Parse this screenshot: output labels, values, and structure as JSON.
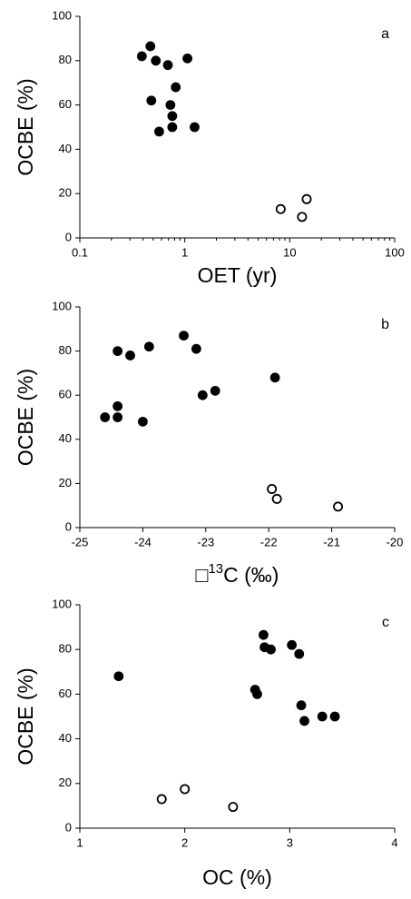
{
  "chart_data": [
    {
      "type": "scatter",
      "annotation": "a",
      "x_label": "OET (yr)",
      "y_label": "OCBE (%)",
      "xscale": "log",
      "xlim": [
        0.1,
        100
      ],
      "xticks": [
        0.1,
        1,
        10,
        100
      ],
      "ylim": [
        0,
        100
      ],
      "yticks": [
        0,
        20,
        40,
        60,
        80,
        100
      ],
      "series": [
        {
          "color": "#000000",
          "filled": true,
          "x": [
            0.39,
            0.47,
            0.53,
            0.69,
            1.06,
            0.82,
            0.48,
            0.73,
            0.76,
            0.76,
            1.24,
            0.57
          ],
          "values": [
            82,
            86.5,
            80,
            78,
            81,
            68,
            62,
            60,
            55,
            50,
            50,
            48
          ]
        },
        {
          "color": "#000000",
          "filled": false,
          "x": [
            8.2,
            14.5,
            13.1
          ],
          "values": [
            13,
            17.5,
            9.5
          ]
        }
      ]
    },
    {
      "type": "scatter",
      "annotation": "b",
      "x_label": [
        "□",
        "13",
        "C (‰)"
      ],
      "y_label": "OCBE (%)",
      "xlim": [
        -25,
        -20
      ],
      "xticks": [
        -25,
        -24,
        -23,
        -22,
        -21,
        -20
      ],
      "ylim": [
        0,
        100
      ],
      "yticks": [
        0,
        20,
        40,
        60,
        80,
        100
      ],
      "series": [
        {
          "color": "#000000",
          "filled": true,
          "x": [
            -24.4,
            -24.2,
            -23.9,
            -23.35,
            -23.15,
            -22.85,
            -23.05,
            -21.9,
            -24.6,
            -24.4,
            -24.4,
            -24.0
          ],
          "values": [
            80,
            78,
            82,
            87,
            81,
            62,
            60,
            68,
            50,
            55,
            50,
            48
          ]
        },
        {
          "color": "#000000",
          "filled": false,
          "x": [
            -21.95,
            -21.87,
            -20.9
          ],
          "values": [
            17.5,
            13,
            9.5
          ]
        }
      ]
    },
    {
      "type": "scatter",
      "annotation": "c",
      "x_label": "OC (%)",
      "y_label": "OCBE (%)",
      "xlim": [
        1,
        4
      ],
      "xticks": [
        1,
        2,
        3,
        4
      ],
      "ylim": [
        0,
        100
      ],
      "yticks": [
        0,
        20,
        40,
        60,
        80,
        100
      ],
      "series": [
        {
          "color": "#000000",
          "filled": true,
          "x": [
            1.37,
            2.75,
            2.76,
            2.82,
            2.67,
            2.69,
            3.02,
            3.09,
            3.11,
            3.14,
            3.31,
            3.43
          ],
          "values": [
            68,
            86.5,
            81,
            80,
            62,
            60,
            82,
            78,
            55,
            48,
            50,
            50
          ]
        },
        {
          "color": "#000000",
          "filled": false,
          "x": [
            1.78,
            2.0,
            2.46
          ],
          "values": [
            13,
            17.5,
            9.5
          ]
        }
      ]
    }
  ]
}
